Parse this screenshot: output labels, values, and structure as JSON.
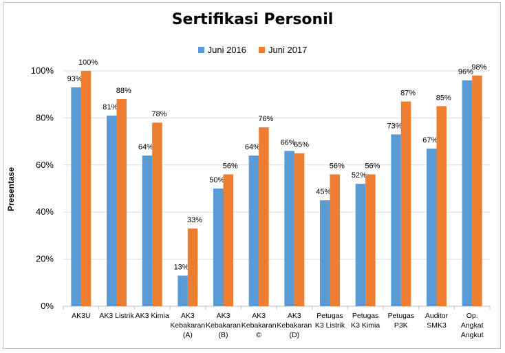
{
  "chart_data": {
    "type": "bar",
    "title": "Sertifikasi Personil",
    "ylabel": "Presentase",
    "xlabel": "",
    "ylim": [
      0,
      100
    ],
    "yticks": [
      "0%",
      "20%",
      "40%",
      "60%",
      "80%",
      "100%"
    ],
    "ytick_values": [
      0,
      20,
      40,
      60,
      80,
      100
    ],
    "grid": true,
    "legend_position": "top",
    "categories": [
      [
        "AK3U"
      ],
      [
        "AK3 Listrik"
      ],
      [
        "AK3 Kimia"
      ],
      [
        "AK3",
        "Kebakaran",
        "(A)"
      ],
      [
        "AK3",
        "Kebakaran",
        "(B)"
      ],
      [
        "AK3",
        "Kebakaran",
        "©"
      ],
      [
        "AK3",
        "Kebakaran",
        "(D)"
      ],
      [
        "Petugas",
        "K3 Listrik"
      ],
      [
        "Petugas",
        "K3 Kimia"
      ],
      [
        "Petugas",
        "P3K"
      ],
      [
        "Auditor",
        "SMK3"
      ],
      [
        "Op.",
        "Angkat",
        "Angkut"
      ]
    ],
    "series": [
      {
        "name": "Juni 2016",
        "color": "#5b9bd5",
        "values": [
          93,
          81,
          64,
          13,
          50,
          64,
          66,
          45,
          52,
          73,
          67,
          96
        ],
        "labels": [
          "93%",
          "81%",
          "64%",
          "13%",
          "50%",
          "64%",
          "66%",
          "45%",
          "52%",
          "73%",
          "67%",
          "96%"
        ]
      },
      {
        "name": "Juni 2017",
        "color": "#ed7d31",
        "values": [
          100,
          88,
          78,
          33,
          56,
          76,
          65,
          56,
          56,
          87,
          85,
          98
        ],
        "labels": [
          "100%",
          "88%",
          "78%",
          "33%",
          "56%",
          "76%",
          "65%",
          "56%",
          "56%",
          "87%",
          "85%",
          "98%"
        ]
      }
    ]
  }
}
